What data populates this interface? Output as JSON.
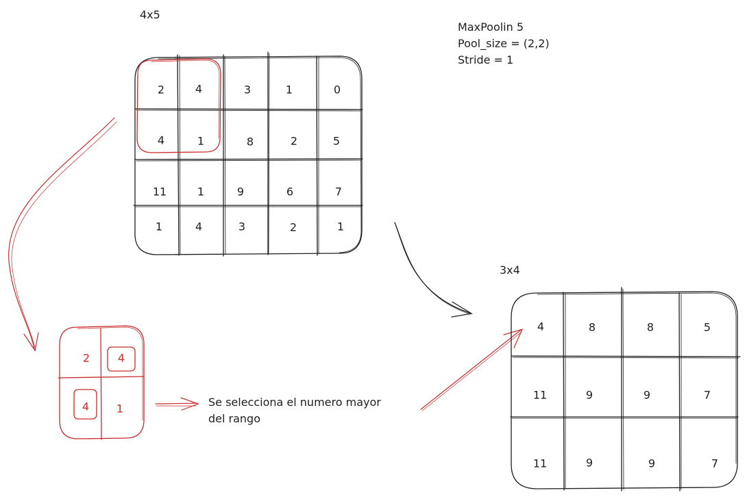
{
  "input_grid": {
    "label": "4x5",
    "rows": [
      [
        "2",
        "4",
        "3",
        "1",
        "0"
      ],
      [
        "4",
        "1",
        "8",
        "2",
        "5"
      ],
      [
        "11",
        "1",
        "9",
        "6",
        "7"
      ],
      [
        "1",
        "4",
        "3",
        "2",
        "1"
      ]
    ]
  },
  "output_grid": {
    "label": "3x4",
    "rows": [
      [
        "4",
        "8",
        "8",
        "5"
      ],
      [
        "11",
        "9",
        "9",
        "7"
      ],
      [
        "11",
        "9",
        "9",
        "7"
      ]
    ]
  },
  "params": {
    "line1": "MaxPoolin 5",
    "line2": "Pool_size = (2,2)",
    "line3": "Stride = 1"
  },
  "window_detail": {
    "cells": [
      "2",
      "4",
      "4",
      "1"
    ]
  },
  "explanation": {
    "line1": "Se selecciona el numero mayor",
    "line2": "del rango"
  },
  "colors": {
    "ink": "#1e1e1e",
    "highlight": "#c92a2a"
  }
}
